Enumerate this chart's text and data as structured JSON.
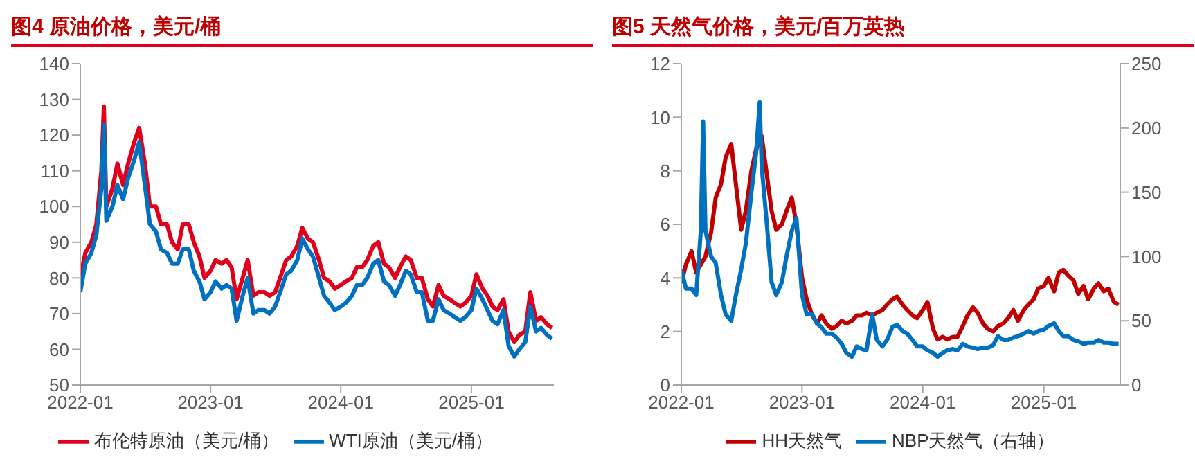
{
  "chart_data": [
    {
      "type": "line",
      "title": "图4  原油价格，美元/桶",
      "x": [
        "2022-01-01",
        "2022-01-15",
        "2022-02-01",
        "2022-02-15",
        "2022-03-01",
        "2022-03-08",
        "2022-03-15",
        "2022-04-01",
        "2022-04-15",
        "2022-05-01",
        "2022-05-15",
        "2022-06-01",
        "2022-06-15",
        "2022-07-01",
        "2022-07-15",
        "2022-08-01",
        "2022-08-15",
        "2022-09-01",
        "2022-09-15",
        "2022-10-01",
        "2022-10-15",
        "2022-11-01",
        "2022-11-15",
        "2022-12-01",
        "2022-12-15",
        "2023-01-01",
        "2023-01-15",
        "2023-02-01",
        "2023-02-15",
        "2023-03-01",
        "2023-03-15",
        "2023-04-01",
        "2023-04-15",
        "2023-05-01",
        "2023-05-15",
        "2023-06-01",
        "2023-06-15",
        "2023-07-01",
        "2023-07-15",
        "2023-08-01",
        "2023-08-15",
        "2023-09-01",
        "2023-09-15",
        "2023-10-01",
        "2023-10-15",
        "2023-11-01",
        "2023-11-15",
        "2023-12-01",
        "2023-12-15",
        "2024-01-01",
        "2024-01-15",
        "2024-02-01",
        "2024-02-15",
        "2024-03-01",
        "2024-03-15",
        "2024-04-01",
        "2024-04-15",
        "2024-05-01",
        "2024-05-15",
        "2024-06-01",
        "2024-06-15",
        "2024-07-01",
        "2024-07-15",
        "2024-08-01",
        "2024-08-15",
        "2024-09-01",
        "2024-09-15",
        "2024-10-01",
        "2024-10-15",
        "2024-11-01",
        "2024-11-15",
        "2024-12-01",
        "2024-12-15",
        "2025-01-01",
        "2025-01-15",
        "2025-02-01",
        "2025-02-15",
        "2025-03-01",
        "2025-03-15",
        "2025-04-01",
        "2025-04-15",
        "2025-05-01",
        "2025-05-15",
        "2025-06-01",
        "2025-06-15",
        "2025-07-01",
        "2025-07-15",
        "2025-08-01",
        "2025-08-15"
      ],
      "series": [
        {
          "name": "布伦特原油（美元/桶）",
          "color": "#e0001b",
          "values": [
            80,
            87,
            90,
            95,
            110,
            128,
            100,
            105,
            112,
            106,
            112,
            118,
            122,
            112,
            100,
            100,
            95,
            95,
            90,
            88,
            95,
            95,
            90,
            86,
            80,
            82,
            85,
            84,
            85,
            83,
            74,
            80,
            85,
            75,
            76,
            76,
            75,
            76,
            80,
            85,
            86,
            89,
            94,
            91,
            90,
            85,
            80,
            79,
            77,
            78,
            79,
            80,
            83,
            83,
            85,
            89,
            90,
            84,
            83,
            80,
            83,
            86,
            85,
            80,
            80,
            74,
            72,
            78,
            75,
            74,
            73,
            72,
            73,
            75,
            81,
            77,
            75,
            72,
            71,
            74,
            65,
            62,
            64,
            65,
            76,
            68,
            69,
            67,
            66
          ]
        },
        {
          "name": "WTI原油（美元/桶）",
          "color": "#0070c0",
          "values": [
            76,
            84,
            87,
            92,
            105,
            123,
            96,
            100,
            106,
            102,
            108,
            113,
            118,
            106,
            95,
            93,
            88,
            87,
            84,
            84,
            88,
            88,
            82,
            79,
            74,
            76,
            79,
            77,
            78,
            77,
            68,
            75,
            80,
            70,
            71,
            71,
            70,
            72,
            76,
            81,
            82,
            85,
            91,
            88,
            86,
            80,
            75,
            73,
            71,
            72,
            73,
            75,
            78,
            78,
            80,
            84,
            85,
            79,
            78,
            75,
            78,
            82,
            81,
            76,
            76,
            68,
            68,
            74,
            71,
            70,
            69,
            68,
            69,
            71,
            77,
            74,
            71,
            68,
            67,
            71,
            61,
            58,
            60,
            62,
            72,
            65,
            66,
            64,
            63
          ]
        }
      ],
      "xlim": [
        "2022-01-01",
        "2025-08-20"
      ],
      "xticks": [
        {
          "value": "2022-01-01",
          "label": "2022-01"
        },
        {
          "value": "2023-01-01",
          "label": "2023-01"
        },
        {
          "value": "2024-01-01",
          "label": "2024-01"
        },
        {
          "value": "2025-01-01",
          "label": "2025-01"
        }
      ],
      "ylim": [
        50,
        140
      ],
      "yticks": [
        50,
        60,
        70,
        80,
        90,
        100,
        110,
        120,
        130,
        140
      ],
      "legend": "bottom",
      "line_style": "solid"
    },
    {
      "type": "line",
      "title": "图5  天然气价格，美元/百万英热",
      "x": [
        "2022-01-01",
        "2022-01-15",
        "2022-02-01",
        "2022-02-15",
        "2022-03-01",
        "2022-03-15",
        "2022-04-01",
        "2022-04-15",
        "2022-05-01",
        "2022-05-15",
        "2022-06-01",
        "2022-06-15",
        "2022-07-01",
        "2022-07-15",
        "2022-08-01",
        "2022-08-15",
        "2022-09-01",
        "2022-09-15",
        "2022-10-01",
        "2022-10-15",
        "2022-11-01",
        "2022-11-15",
        "2022-12-01",
        "2022-12-15",
        "2023-01-01",
        "2023-01-15",
        "2023-02-01",
        "2023-02-15",
        "2023-03-01",
        "2023-03-15",
        "2023-04-01",
        "2023-04-15",
        "2023-05-01",
        "2023-05-15",
        "2023-06-01",
        "2023-06-15",
        "2023-07-01",
        "2023-07-15",
        "2023-08-01",
        "2023-08-15",
        "2023-09-01",
        "2023-09-15",
        "2023-10-01",
        "2023-10-15",
        "2023-11-01",
        "2023-11-15",
        "2023-12-01",
        "2023-12-15",
        "2024-01-01",
        "2024-01-15",
        "2024-02-01",
        "2024-02-15",
        "2024-03-01",
        "2024-03-15",
        "2024-04-01",
        "2024-04-15",
        "2024-05-01",
        "2024-05-15",
        "2024-06-01",
        "2024-06-15",
        "2024-07-01",
        "2024-07-15",
        "2024-08-01",
        "2024-08-15",
        "2024-09-01",
        "2024-09-15",
        "2024-10-01",
        "2024-10-15",
        "2024-11-01",
        "2024-11-15",
        "2024-12-01",
        "2024-12-15",
        "2025-01-01",
        "2025-01-15",
        "2025-02-01",
        "2025-02-15",
        "2025-03-01",
        "2025-03-15",
        "2025-04-01",
        "2025-04-15",
        "2025-05-01",
        "2025-05-15",
        "2025-06-01",
        "2025-06-15",
        "2025-07-01",
        "2025-07-15",
        "2025-08-01",
        "2025-08-15"
      ],
      "series": [
        {
          "name": "HH天然气",
          "color": "#c00000",
          "values": [
            3.8,
            4.5,
            5.0,
            4.2,
            4.5,
            4.8,
            5.7,
            7.0,
            7.5,
            8.5,
            9.0,
            7.5,
            5.8,
            6.5,
            8.0,
            8.8,
            9.3,
            8.0,
            6.5,
            5.8,
            6.0,
            6.5,
            7.0,
            6.0,
            4.0,
            3.2,
            2.6,
            2.3,
            2.6,
            2.3,
            2.1,
            2.2,
            2.4,
            2.3,
            2.4,
            2.6,
            2.6,
            2.7,
            2.6,
            2.7,
            2.8,
            3.0,
            3.2,
            3.3,
            3.0,
            2.8,
            2.6,
            2.5,
            2.8,
            3.1,
            2.1,
            1.7,
            1.8,
            1.7,
            1.8,
            1.8,
            2.2,
            2.6,
            2.9,
            2.7,
            2.3,
            2.1,
            2.0,
            2.2,
            2.3,
            2.5,
            2.8,
            2.4,
            2.8,
            3.0,
            3.2,
            3.6,
            3.7,
            4.0,
            3.5,
            4.2,
            4.3,
            4.1,
            3.9,
            3.4,
            3.7,
            3.2,
            3.6,
            3.8,
            3.5,
            3.6,
            3.1,
            3.0
          ]
        },
        {
          "name": "NBP天然气（右轴）",
          "color": "#0070c0",
          "axis": "y2",
          "x": [
            "2022-01-01",
            "2022-01-15",
            "2022-02-01",
            "2022-02-15",
            "2022-03-01",
            "2022-03-08",
            "2022-03-15",
            "2022-04-01",
            "2022-04-15",
            "2022-05-01",
            "2022-05-15",
            "2022-06-01",
            "2022-06-15",
            "2022-07-01",
            "2022-07-15",
            "2022-08-01",
            "2022-08-15",
            "2022-08-26",
            "2022-09-01",
            "2022-09-15",
            "2022-10-01",
            "2022-10-15",
            "2022-11-01",
            "2022-11-15",
            "2022-12-01",
            "2022-12-15",
            "2023-01-01",
            "2023-01-15",
            "2023-02-01",
            "2023-02-15",
            "2023-03-01",
            "2023-03-15",
            "2023-04-01",
            "2023-04-15",
            "2023-05-01",
            "2023-05-15",
            "2023-06-01",
            "2023-06-15",
            "2023-07-01",
            "2023-07-15",
            "2023-08-01",
            "2023-08-15",
            "2023-09-01",
            "2023-09-15",
            "2023-10-01",
            "2023-10-15",
            "2023-11-01",
            "2023-11-15",
            "2023-12-01",
            "2023-12-15",
            "2024-01-01",
            "2024-01-15",
            "2024-02-01",
            "2024-02-15",
            "2024-03-01",
            "2024-03-15",
            "2024-04-01",
            "2024-04-15",
            "2024-05-01",
            "2024-05-15",
            "2024-06-01",
            "2024-06-15",
            "2024-07-01",
            "2024-07-15",
            "2024-08-01",
            "2024-08-15",
            "2024-09-01",
            "2024-09-15",
            "2024-10-01",
            "2024-10-15",
            "2024-11-01",
            "2024-11-15",
            "2024-12-01",
            "2024-12-15",
            "2025-01-01",
            "2025-01-15",
            "2025-02-01",
            "2025-02-15",
            "2025-03-01",
            "2025-03-15",
            "2025-04-01",
            "2025-04-15",
            "2025-05-01",
            "2025-05-15",
            "2025-06-01",
            "2025-06-15",
            "2025-07-01",
            "2025-07-15",
            "2025-08-01",
            "2025-08-15"
          ],
          "values": [
            90,
            75,
            75,
            70,
            120,
            205,
            120,
            100,
            95,
            70,
            55,
            50,
            70,
            90,
            110,
            150,
            180,
            220,
            170,
            130,
            80,
            70,
            80,
            100,
            120,
            130,
            70,
            55,
            55,
            48,
            45,
            40,
            40,
            37,
            32,
            25,
            22,
            30,
            28,
            27,
            55,
            35,
            30,
            35,
            45,
            47,
            42,
            40,
            35,
            30,
            30,
            27,
            25,
            22,
            25,
            27,
            28,
            27,
            32,
            30,
            29,
            28,
            29,
            29,
            31,
            38,
            35,
            35,
            37,
            38,
            40,
            42,
            40,
            42,
            43,
            46,
            48,
            42,
            38,
            38,
            35,
            34,
            32,
            33,
            33,
            35,
            33,
            33,
            32,
            32
          ]
        }
      ],
      "xlim": [
        "2022-01-01",
        "2025-08-20"
      ],
      "xticks": [
        {
          "value": "2022-01-01",
          "label": "2022-01"
        },
        {
          "value": "2023-01-01",
          "label": "2023-01"
        },
        {
          "value": "2024-01-01",
          "label": "2024-01"
        },
        {
          "value": "2025-01-01",
          "label": "2025-01"
        }
      ],
      "ylim": [
        0,
        12
      ],
      "yticks": [
        0,
        2,
        4,
        6,
        8,
        10,
        12
      ],
      "y2lim": [
        0,
        250
      ],
      "y2ticks": [
        0,
        50,
        100,
        150,
        200,
        250
      ],
      "legend": "bottom",
      "line_style": "solid"
    }
  ]
}
